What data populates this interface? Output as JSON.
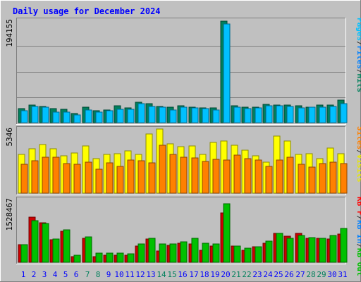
{
  "chart_data": {
    "type": "bar",
    "title": "Daily usage for December 2024",
    "categories": [
      "1",
      "2",
      "3",
      "4",
      "5",
      "6",
      "7",
      "8",
      "9",
      "10",
      "11",
      "12",
      "13",
      "14",
      "15",
      "16",
      "17",
      "18",
      "19",
      "20",
      "21",
      "22",
      "23",
      "24",
      "25",
      "26",
      "27",
      "28",
      "29",
      "30",
      "31"
    ],
    "weekend_days": [
      "7",
      "8",
      "14",
      "15",
      "21",
      "22",
      "28",
      "29"
    ],
    "panels": [
      {
        "max_label": "194155",
        "ylim": [
          0,
          194155
        ],
        "legend": [
          {
            "text": "Pages",
            "color": "#00c0ff"
          },
          {
            "text": "/",
            "color": "#333333"
          },
          {
            "text": "Files",
            "color": "#0080ff"
          },
          {
            "text": "/",
            "color": "#333333"
          },
          {
            "text": "Hits",
            "color": "#00805c"
          }
        ],
        "series": [
          {
            "name": "Hits",
            "color": "#00805c",
            "values": [
              26300,
              33300,
              30600,
              26200,
              25400,
              17500,
              29100,
              22900,
              24000,
              31700,
              28700,
              39100,
              35900,
              31400,
              29100,
              31700,
              29600,
              28500,
              27600,
              192400,
              32100,
              28900,
              29800,
              34200,
              33700,
              34000,
              31700,
              30100,
              34000,
              33500,
              42800
            ]
          },
          {
            "name": "Pages",
            "color": "#00c0ff",
            "values": [
              22200,
              30300,
              29200,
              20600,
              20000,
              14500,
              24000,
              19900,
              22300,
              26100,
              26000,
              36800,
              30300,
              29400,
              24200,
              29200,
              28000,
              26800,
              24600,
              187700,
              28800,
              27300,
              28500,
              32000,
              32500,
              30200,
              28200,
              29000,
              29600,
              31000,
              36800
            ]
          }
        ]
      },
      {
        "max_label": "5346",
        "ylim": [
          0,
          5346
        ],
        "legend": [
          {
            "text": "Sites",
            "color": "#ff8000"
          },
          {
            "text": "/",
            "color": "#333333"
          },
          {
            "text": "Visits",
            "color": "#e8e800"
          }
        ],
        "series": [
          {
            "name": "Visits",
            "color": "#ffff00",
            "values": [
              3260,
              3680,
              4040,
              3720,
              3140,
              3330,
              3960,
              2900,
              3230,
              3280,
              3540,
              3260,
              4950,
              5330,
              4090,
              3880,
              3910,
              3240,
              4250,
              4350,
              4010,
              3590,
              3140,
              2610,
              4770,
              4360,
              3230,
              3300,
              2900,
              3750,
              3310
            ]
          },
          {
            "name": "Sites",
            "color": "#ff8000",
            "values": [
              2420,
              2690,
              2990,
              2980,
              2470,
              2390,
              2610,
              2020,
              2540,
              2250,
              2770,
              2720,
              2510,
              3980,
              3260,
              2980,
              2920,
              2640,
              2810,
              2760,
              3170,
              2860,
              2780,
              2210,
              2760,
              2990,
              2380,
              2160,
              2440,
              2610,
              2480
            ]
          }
        ]
      },
      {
        "max_label": "1528467",
        "ylim": [
          0,
          1528467
        ],
        "legend": [
          {
            "text": "KB F",
            "color": "#ff0000"
          },
          {
            "text": "/",
            "color": "#333333"
          },
          {
            "text": "KB In",
            "color": "#0080ff"
          },
          {
            "text": "/",
            "color": "#333333"
          },
          {
            "text": "KB Out",
            "color": "#00c000"
          }
        ],
        "series": [
          {
            "name": "KB F",
            "color": "#cc0000",
            "values": [
              430000,
              1100000,
              960000,
              550000,
              760000,
              140000,
              580000,
              140000,
              180000,
              180000,
              180000,
              400000,
              560000,
              280000,
              420000,
              470000,
              450000,
              300000,
              400000,
              1200000,
              400000,
              300000,
              380000,
              460000,
              710000,
              630000,
              700000,
              590000,
              580000,
              570000,
              690000
            ]
          },
          {
            "name": "KB Out",
            "color": "#00c000",
            "values": [
              430000,
              1010000,
              940000,
              560000,
              790000,
              180000,
              610000,
              220000,
              220000,
              220000,
              200000,
              440000,
              580000,
              450000,
              440000,
              500000,
              590000,
              470000,
              450000,
              1420000,
              400000,
              350000,
              380000,
              510000,
              700000,
              590000,
              650000,
              600000,
              580000,
              650000,
              820000
            ]
          }
        ]
      }
    ],
    "grid": true
  },
  "colors": {
    "background": "#c0c0c0",
    "border": "#7f7f7f",
    "title": "#0000ff",
    "weekday_label": "#0000ff",
    "weekend_label": "#00805c",
    "panel_grid": "#808080"
  }
}
